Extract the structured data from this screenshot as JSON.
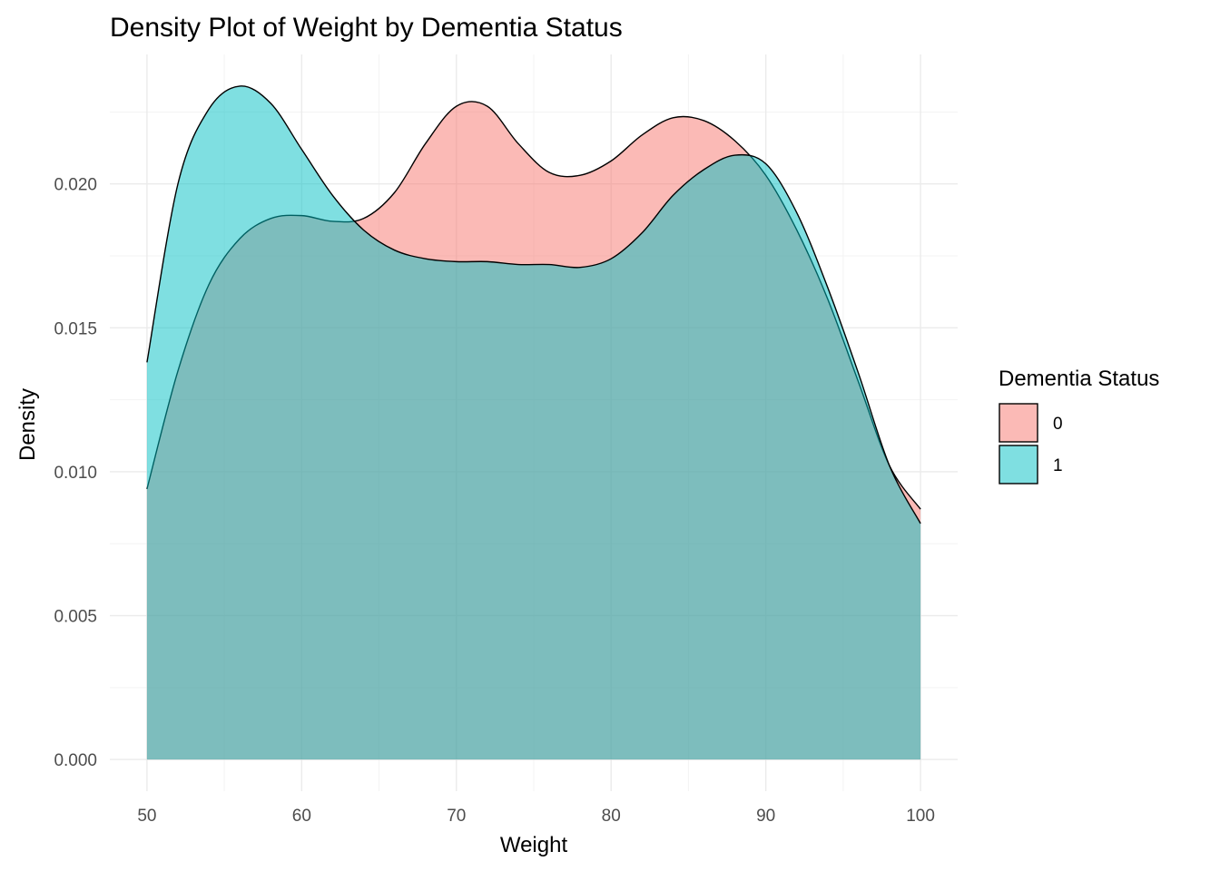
{
  "chart_data": {
    "type": "area",
    "subtype": "density",
    "title": "Density Plot of Weight by Dementia Status",
    "xlabel": "Weight",
    "ylabel": "Density",
    "xlim": [
      47.6,
      102.4
    ],
    "ylim": [
      -0.0011,
      0.0245
    ],
    "x_ticks": [
      50,
      60,
      70,
      80,
      90,
      100
    ],
    "y_ticks": [
      0.0,
      0.005,
      0.01,
      0.015,
      0.02
    ],
    "x_tick_labels": [
      "50",
      "60",
      "70",
      "80",
      "90",
      "100"
    ],
    "y_tick_labels": [
      "0.000",
      "0.005",
      "0.010",
      "0.015",
      "0.020"
    ],
    "grid": true,
    "legend": {
      "title": "Dementia Status",
      "placement": "right"
    },
    "x": [
      50,
      52,
      54,
      56,
      58,
      60,
      62,
      64,
      66,
      68,
      70,
      72,
      74,
      76,
      78,
      80,
      82,
      84,
      86,
      88,
      90,
      92,
      94,
      96,
      98,
      100
    ],
    "series": [
      {
        "name": "0",
        "color": "#F8766D",
        "values": [
          0.0094,
          0.0135,
          0.0165,
          0.0181,
          0.0188,
          0.0189,
          0.0187,
          0.0188,
          0.0197,
          0.0214,
          0.0227,
          0.0227,
          0.0214,
          0.0204,
          0.0203,
          0.0208,
          0.0217,
          0.0223,
          0.0222,
          0.0215,
          0.0203,
          0.0184,
          0.016,
          0.0131,
          0.0102,
          0.0087
        ]
      },
      {
        "name": "1",
        "color": "#00BFC4",
        "values": [
          0.0138,
          0.02,
          0.0226,
          0.0234,
          0.0228,
          0.0212,
          0.0196,
          0.0184,
          0.0177,
          0.0174,
          0.0173,
          0.0173,
          0.0172,
          0.0172,
          0.0171,
          0.0174,
          0.0183,
          0.0196,
          0.0205,
          0.021,
          0.0207,
          0.019,
          0.0164,
          0.0134,
          0.0102,
          0.0082
        ]
      }
    ]
  }
}
